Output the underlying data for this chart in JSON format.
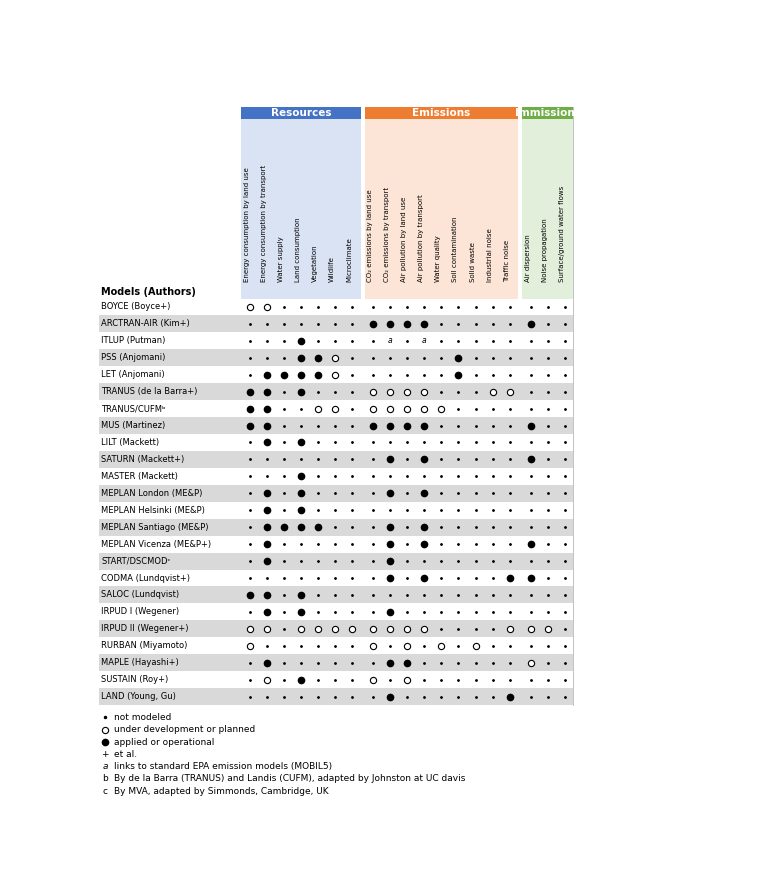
{
  "title_resources": "Resources",
  "title_emissions": "Emissions",
  "title_immissions": "Immissions",
  "header_color_resources": "#4472C4",
  "header_color_emissions": "#ED7D31",
  "header_color_immissions": "#70AD47",
  "bg_color_resources": "#DAE3F3",
  "bg_color_emissions": "#FCE4D6",
  "bg_color_immissions": "#E2EFDA",
  "row_bg_shade": "#D9D9D9",
  "col_headers_resources": [
    "Energy consumption by land use",
    "Energy consumption by transport",
    "Water supply",
    "Land consumption",
    "Vegetation",
    "Wildlife",
    "Microclimate"
  ],
  "col_headers_emissions": [
    "CO₂ emissions by land use",
    "CO₂ emissions by transport",
    "Air pollution by land use",
    "Air pollution by transport",
    "Water quality",
    "Soil contamination",
    "Solid waste",
    "Industrial noise",
    "Traffic noise"
  ],
  "col_headers_immissions": [
    "Air dispersion",
    "Noise propagation",
    "Surface/ground water flows"
  ],
  "models": [
    "BOYCE (Boyce+)",
    "ARCTRAN-AIR (Kim+)",
    "ITLUP (Putman)",
    "PSS (Anjomani)",
    "LET (Anjomani)",
    "TRANUS (de la Barra+)",
    "TRANUS/CUFMᵇ",
    "MUS (Martinez)",
    "LILT (Mackett)",
    "SATURN (Mackett+)",
    "MASTER (Mackett)",
    "MEPLAN London (ME&P)",
    "MEPLAN Helsinki (ME&P)",
    "MEPLAN Santiago (ME&P)",
    "MEPLAN Vicenza (ME&P+)",
    "START/DSCMODᶜ",
    "CODMA (Lundqvist+)",
    "SALOC (Lundqvist)",
    "IRPUD I (Wegener)",
    "IRPUD II (Wegener+)",
    "RURBAN (Miyamoto)",
    "MAPLE (Hayashi+)",
    "SUSTAIN (Roy+)",
    "LAND (Young, Gu)"
  ],
  "data_resources": [
    [
      "O",
      "O",
      ".",
      ".",
      ".",
      ".",
      "."
    ],
    [
      ".",
      ".",
      ".",
      ".",
      ".",
      ".",
      "."
    ],
    [
      ".",
      ".",
      ".",
      "F",
      ".",
      ".",
      "."
    ],
    [
      ".",
      ".",
      ".",
      "F",
      "F",
      "O",
      "."
    ],
    [
      ".",
      "F",
      "F",
      "F",
      "F",
      "O",
      "."
    ],
    [
      "F",
      "F",
      ".",
      "F",
      ".",
      ".",
      "."
    ],
    [
      "F",
      "F",
      ".",
      ".",
      "O",
      "O",
      "."
    ],
    [
      "F",
      "F",
      ".",
      ".",
      ".",
      ".",
      "."
    ],
    [
      ".",
      "F",
      ".",
      "F",
      ".",
      ".",
      "."
    ],
    [
      ".",
      ".",
      ".",
      ".",
      ".",
      ".",
      "."
    ],
    [
      ".",
      ".",
      ".",
      "F",
      ".",
      ".",
      "."
    ],
    [
      ".",
      "F",
      ".",
      "F",
      ".",
      ".",
      "."
    ],
    [
      ".",
      "F",
      ".",
      "F",
      ".",
      ".",
      "."
    ],
    [
      ".",
      "F",
      "F",
      "F",
      "F",
      ".",
      "."
    ],
    [
      ".",
      "F",
      ".",
      ".",
      ".",
      ".",
      "."
    ],
    [
      ".",
      "F",
      ".",
      ".",
      ".",
      ".",
      "."
    ],
    [
      ".",
      ".",
      ".",
      ".",
      ".",
      ".",
      "."
    ],
    [
      "F",
      "F",
      ".",
      "F",
      ".",
      ".",
      "."
    ],
    [
      ".",
      "F",
      ".",
      "F",
      ".",
      ".",
      "."
    ],
    [
      "O",
      "O",
      ".",
      "O",
      "O",
      "O",
      "O"
    ],
    [
      "O",
      ".",
      ".",
      ".",
      ".",
      ".",
      "."
    ],
    [
      ".",
      "F",
      ".",
      ".",
      ".",
      ".",
      "."
    ],
    [
      ".",
      "O",
      ".",
      "F",
      ".",
      ".",
      "."
    ],
    [
      ".",
      ".",
      ".",
      ".",
      ".",
      ".",
      "."
    ]
  ],
  "data_emissions": [
    [
      ".",
      ".",
      ".",
      ".",
      ".",
      ".",
      ".",
      ".",
      "."
    ],
    [
      "F",
      "F",
      "F",
      "F",
      ".",
      ".",
      ".",
      ".",
      "."
    ],
    [
      ".",
      "a",
      ".",
      "a",
      ".",
      ".",
      ".",
      ".",
      "."
    ],
    [
      ".",
      ".",
      ".",
      ".",
      ".",
      "F",
      ".",
      ".",
      "."
    ],
    [
      ".",
      ".",
      ".",
      ".",
      ".",
      "F",
      ".",
      ".",
      "."
    ],
    [
      "O",
      "O",
      "O",
      "O",
      ".",
      ".",
      ".",
      "O",
      "O"
    ],
    [
      "O",
      "O",
      "O",
      "O",
      "O",
      ".",
      ".",
      ".",
      "."
    ],
    [
      "F",
      "F",
      "F",
      "F",
      ".",
      ".",
      ".",
      ".",
      "."
    ],
    [
      ".",
      ".",
      ".",
      ".",
      ".",
      ".",
      ".",
      ".",
      "."
    ],
    [
      ".",
      "F",
      ".",
      "F",
      ".",
      ".",
      ".",
      ".",
      "."
    ],
    [
      ".",
      ".",
      ".",
      ".",
      ".",
      ".",
      ".",
      ".",
      "."
    ],
    [
      ".",
      "F",
      ".",
      "F",
      ".",
      ".",
      ".",
      ".",
      "."
    ],
    [
      ".",
      ".",
      ".",
      ".",
      ".",
      ".",
      ".",
      ".",
      "."
    ],
    [
      ".",
      "F",
      ".",
      "F",
      ".",
      ".",
      ".",
      ".",
      "."
    ],
    [
      ".",
      "F",
      ".",
      "F",
      ".",
      ".",
      ".",
      ".",
      "."
    ],
    [
      ".",
      "F",
      ".",
      ".",
      ".",
      ".",
      ".",
      ".",
      "."
    ],
    [
      ".",
      "F",
      ".",
      "F",
      ".",
      ".",
      ".",
      ".",
      "F"
    ],
    [
      ".",
      ".",
      ".",
      ".",
      ".",
      ".",
      ".",
      ".",
      "."
    ],
    [
      ".",
      "F",
      ".",
      ".",
      ".",
      ".",
      ".",
      ".",
      "."
    ],
    [
      "O",
      "O",
      "O",
      "O",
      ".",
      ".",
      ".",
      ".",
      "O"
    ],
    [
      "O",
      ".",
      "O",
      ".",
      "O",
      ".",
      "O",
      ".",
      "."
    ],
    [
      ".",
      "F",
      "F",
      ".",
      ".",
      ".",
      ".",
      ".",
      "."
    ],
    [
      "O",
      ".",
      "O",
      ".",
      ".",
      ".",
      ".",
      ".",
      "."
    ],
    [
      ".",
      "F",
      ".",
      ".",
      ".",
      ".",
      ".",
      ".",
      "F"
    ]
  ],
  "data_immissions": [
    [
      ".",
      ".",
      "."
    ],
    [
      "F",
      ".",
      "."
    ],
    [
      ".",
      ".",
      "."
    ],
    [
      ".",
      ".",
      "."
    ],
    [
      ".",
      ".",
      "."
    ],
    [
      ".",
      ".",
      "."
    ],
    [
      ".",
      ".",
      "."
    ],
    [
      "F",
      ".",
      "."
    ],
    [
      ".",
      ".",
      "."
    ],
    [
      "F",
      ".",
      "."
    ],
    [
      ".",
      ".",
      "."
    ],
    [
      ".",
      ".",
      "."
    ],
    [
      ".",
      ".",
      "."
    ],
    [
      ".",
      ".",
      "."
    ],
    [
      "F",
      ".",
      "."
    ],
    [
      ".",
      ".",
      "."
    ],
    [
      "F",
      ".",
      "."
    ],
    [
      ".",
      ".",
      "."
    ],
    [
      ".",
      ".",
      "."
    ],
    [
      "O",
      "O",
      "."
    ],
    [
      ".",
      ".",
      "."
    ],
    [
      "O",
      ".",
      "."
    ],
    [
      ".",
      ".",
      "."
    ],
    [
      ".",
      ".",
      "."
    ]
  ]
}
